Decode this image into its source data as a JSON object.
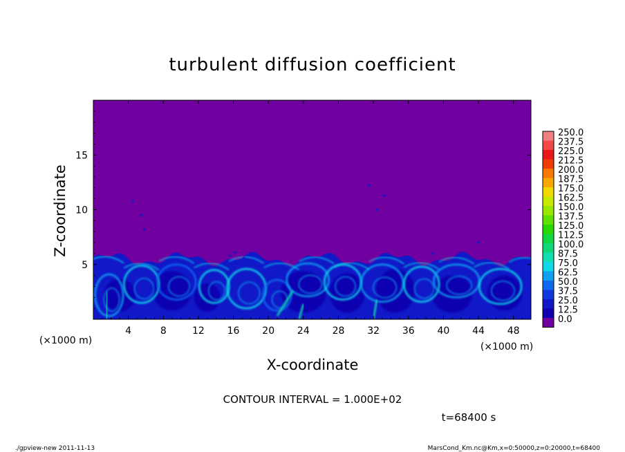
{
  "chart_data": {
    "type": "heatmap",
    "title": "turbulent diffusion coefficient",
    "xlabel": "X-coordinate",
    "ylabel": "Z-coordinate",
    "x_unit": "(×1000 m)",
    "y_unit": "(×1000 m)",
    "xlim": [
      0,
      50
    ],
    "ylim": [
      0,
      20
    ],
    "xticks": [
      "4",
      "8",
      "12",
      "16",
      "20",
      "24",
      "28",
      "32",
      "36",
      "40",
      "44",
      "48"
    ],
    "yticks": [
      "5",
      "10",
      "15"
    ],
    "xtick_values": [
      4,
      8,
      12,
      16,
      20,
      24,
      28,
      32,
      36,
      40,
      44,
      48
    ],
    "ytick_values": [
      5,
      10,
      15
    ],
    "background_value": 0.0,
    "turbulent_layer_top_z": 5.5,
    "colorbar": {
      "labels": [
        "250.0",
        "237.5",
        "225.0",
        "212.5",
        "200.0",
        "187.5",
        "175.0",
        "162.5",
        "150.0",
        "137.5",
        "125.0",
        "112.5",
        "100.0",
        "87.5",
        "75.0",
        "62.5",
        "50.0",
        "37.5",
        "25.0",
        "12.5",
        "0.0"
      ],
      "colors": [
        "#f08080",
        "#f04848",
        "#e81818",
        "#f03c00",
        "#f87800",
        "#f8a800",
        "#f0d800",
        "#c8e800",
        "#98e800",
        "#60e000",
        "#28d800",
        "#10d840",
        "#10d878",
        "#10e0b0",
        "#10d8e8",
        "#10a0f0",
        "#1068f0",
        "#1038e0",
        "#1018c8",
        "#1000b0",
        "#7000a0"
      ]
    },
    "contour_interval": "CONTOUR INTERVAL = 1.000E+02",
    "time_label": "t=68400 s"
  },
  "footer": {
    "left": "./gpview-new   2011-11-13",
    "right": "MarsCond_Km.nc@Km,x=0:50000,z=0:20000,t=68400"
  }
}
